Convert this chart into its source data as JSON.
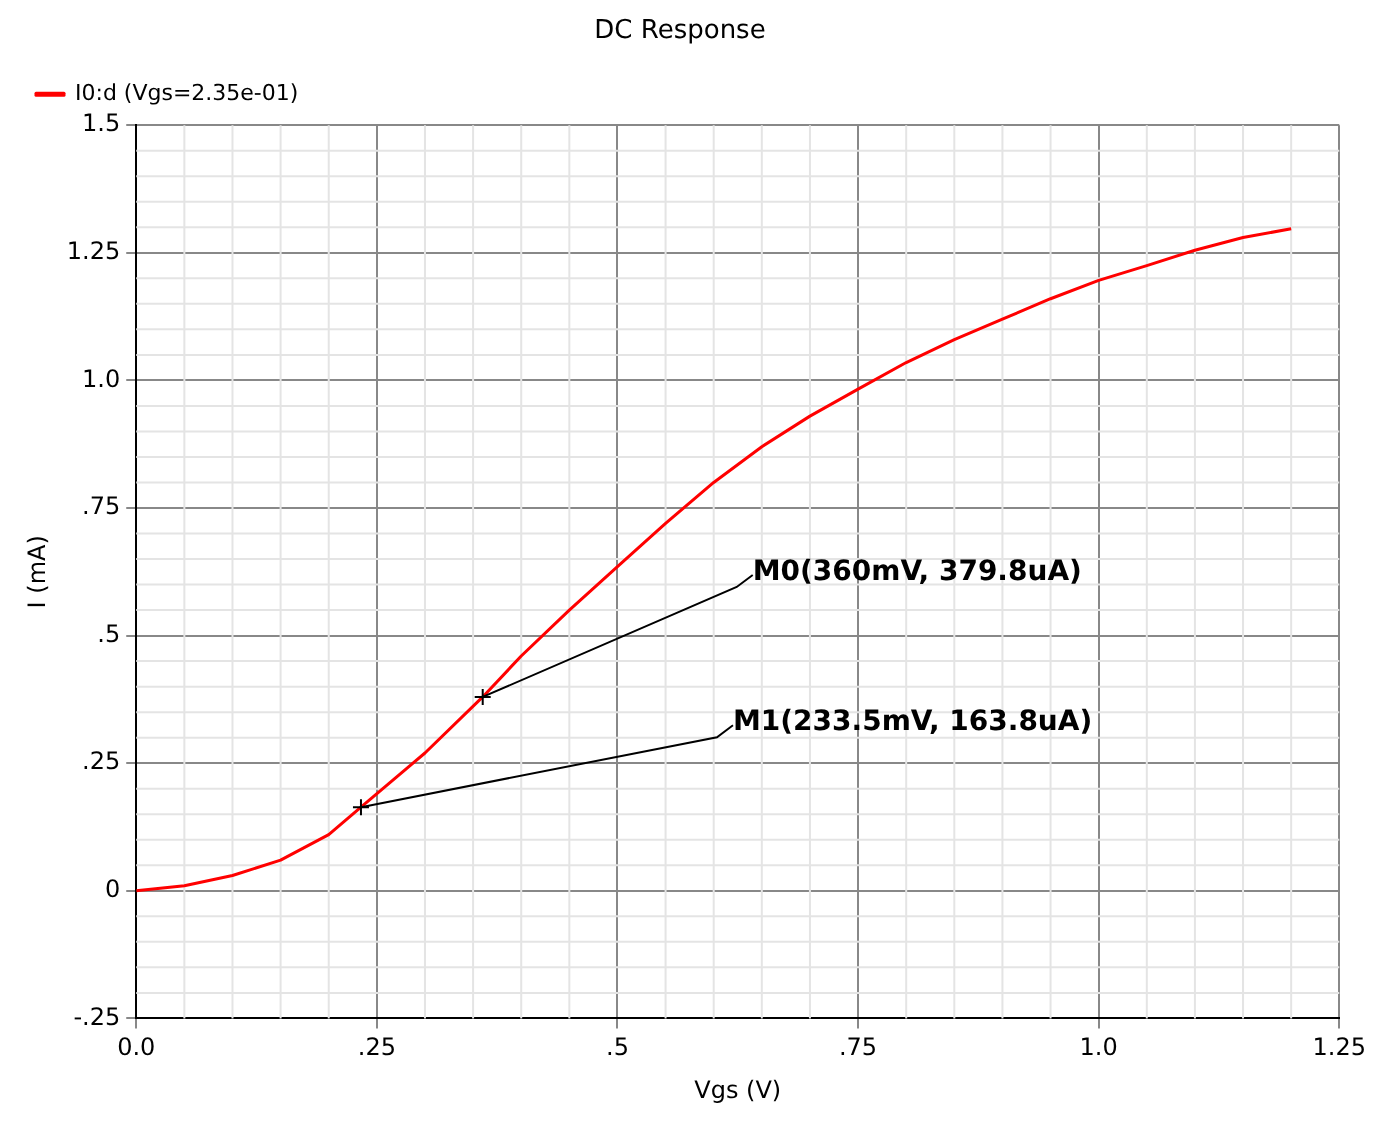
{
  "chart_data": {
    "type": "line",
    "title": "DC Response",
    "xlabel": "Vgs (V)",
    "ylabel": "I (mA)",
    "x": [
      0,
      0.05,
      0.1,
      0.15,
      0.2,
      0.2335,
      0.3,
      0.36,
      0.4,
      0.45,
      0.5,
      0.55,
      0.6,
      0.65,
      0.7,
      0.75,
      0.8,
      0.85,
      0.9,
      0.95,
      1.0,
      1.05,
      1.1,
      1.15,
      1.2
    ],
    "series": [
      {
        "name": "I0:d (Vgs=2.35e-01)",
        "color": "#ff0000",
        "values": [
          0,
          0.01,
          0.03,
          0.06,
          0.11,
          0.1638,
          0.27,
          0.3798,
          0.46,
          0.55,
          0.635,
          0.72,
          0.8,
          0.87,
          0.93,
          0.983,
          1.035,
          1.08,
          1.12,
          1.16,
          1.196,
          1.225,
          1.255,
          1.28,
          1.297
        ]
      }
    ],
    "xlim": [
      0,
      1.25
    ],
    "ylim": [
      -0.25,
      1.5
    ],
    "xticks": [
      {
        "value": 0,
        "label": "0.0"
      },
      {
        "value": 0.25,
        "label": ".25"
      },
      {
        "value": 0.5,
        "label": ".5"
      },
      {
        "value": 0.75,
        "label": ".75"
      },
      {
        "value": 1.0,
        "label": "1.0"
      },
      1.25
    ],
    "yticks": [
      {
        "value": -0.25,
        "label": "-.25"
      },
      0,
      {
        "value": 0.25,
        "label": ".25"
      },
      {
        "value": 0.5,
        "label": ".5"
      },
      {
        "value": 0.75,
        "label": ".75"
      },
      {
        "value": 1.0,
        "label": "1.0"
      },
      1.25,
      1.5
    ],
    "annotations": [
      {
        "text": "M0(360mV, 379.8uA)",
        "x": 0.36,
        "y": 0.3798
      },
      {
        "text": "M1(233.5mV, 163.8uA)",
        "x": 0.2335,
        "y": 0.1638
      }
    ],
    "grid": true,
    "legend": "top left",
    "marker": "none",
    "line_style": "solid"
  }
}
